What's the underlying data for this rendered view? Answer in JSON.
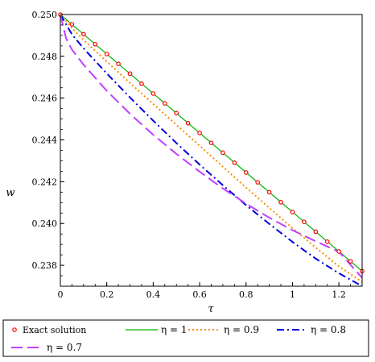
{
  "chart_data": {
    "type": "line",
    "xlabel": "τ",
    "ylabel": "w",
    "xlim": [
      0,
      1.3
    ],
    "ylim": [
      0.237,
      0.25
    ],
    "x_ticks": [
      "0",
      "0.2",
      "0.4",
      "0.6",
      "0.8",
      "1",
      "1.2"
    ],
    "x_tick_values": [
      0,
      0.2,
      0.4,
      0.6,
      0.8,
      1.0,
      1.2
    ],
    "y_ticks": [
      "0.250",
      "0.248",
      "0.246",
      "0.244",
      "0.242",
      "0.240",
      "0.238"
    ],
    "y_tick_values": [
      0.25,
      0.248,
      0.246,
      0.244,
      0.242,
      0.24,
      0.238
    ],
    "legend_position": "bottom",
    "series": [
      {
        "name": "Exact solution",
        "style": "markers",
        "color": "#ff0000",
        "x": [
          0,
          0.05,
          0.1,
          0.15,
          0.2,
          0.25,
          0.3,
          0.35,
          0.4,
          0.45,
          0.5,
          0.55,
          0.6,
          0.65,
          0.7,
          0.75,
          0.8,
          0.85,
          0.9,
          0.95,
          1.0,
          1.05,
          1.1,
          1.15,
          1.2,
          1.25,
          1.3
        ],
        "y": [
          0.25,
          0.24953,
          0.24906,
          0.24858,
          0.24811,
          0.24764,
          0.24717,
          0.24669,
          0.24622,
          0.24575,
          0.24528,
          0.2448,
          0.24433,
          0.24386,
          0.24339,
          0.24291,
          0.24244,
          0.24197,
          0.2415,
          0.24102,
          0.24055,
          0.24008,
          0.23961,
          0.23913,
          0.23866,
          0.23819,
          0.23772
        ]
      },
      {
        "name": "η = 1",
        "style": "solid",
        "color": "#00b000",
        "x": [
          0,
          1.3
        ],
        "y": [
          0.25,
          0.23772
        ]
      },
      {
        "name": "η = 0.9",
        "style": "dotted",
        "color": "#ff8c00",
        "x": [
          0,
          0.05,
          0.1,
          0.2,
          0.3,
          0.4,
          0.5,
          0.6,
          0.7,
          0.8,
          0.9,
          1.0,
          1.1,
          1.2,
          1.3
        ],
        "y": [
          0.25,
          0.24935,
          0.24878,
          0.24775,
          0.24672,
          0.24572,
          0.24472,
          0.24372,
          0.24272,
          0.24172,
          0.24075,
          0.23978,
          0.23885,
          0.23795,
          0.2372
        ]
      },
      {
        "name": "η = 0.8",
        "style": "dashdot",
        "color": "#0000e0",
        "x": [
          0,
          0.05,
          0.1,
          0.2,
          0.3,
          0.4,
          0.5,
          0.6,
          0.7,
          0.8,
          0.9,
          1.0,
          1.1,
          1.2,
          1.3
        ],
        "y": [
          0.25,
          0.24905,
          0.24838,
          0.24718,
          0.24603,
          0.24492,
          0.24385,
          0.24282,
          0.24183,
          0.24088,
          0.23998,
          0.23912,
          0.23832,
          0.23762,
          0.237
        ]
      },
      {
        "name": "η = 0.7",
        "style": "longdash",
        "color": "#c040ff",
        "x": [
          0,
          0.025,
          0.05,
          0.1,
          0.2,
          0.3,
          0.4,
          0.5,
          0.6,
          0.7,
          0.8,
          0.9,
          1.0,
          1.1,
          1.2,
          1.3
        ],
        "y": [
          0.25,
          0.24885,
          0.24832,
          0.2476,
          0.24635,
          0.24525,
          0.24425,
          0.24333,
          0.24248,
          0.24168,
          0.24095,
          0.24028,
          0.23968,
          0.23915,
          0.23865,
          0.2374
        ]
      }
    ]
  }
}
